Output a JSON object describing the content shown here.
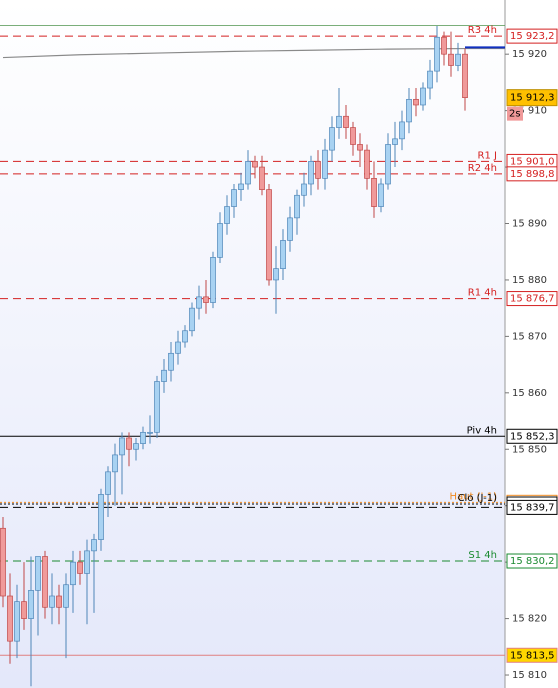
{
  "chart_data": {
    "type": "candlestick",
    "ylim": [
      15807.7,
      15929.6
    ],
    "yticks": [
      {
        "value": 15810,
        "label": "15 810"
      },
      {
        "value": 15820,
        "label": "15 820"
      },
      {
        "value": 15830,
        "label": "15 830"
      },
      {
        "value": 15840,
        "label": "15 840"
      },
      {
        "value": 15850,
        "label": "15 850"
      },
      {
        "value": 15860,
        "label": "15 860"
      },
      {
        "value": 15870,
        "label": "15 870"
      },
      {
        "value": 15880,
        "label": "15 880"
      },
      {
        "value": 15890,
        "label": "15 890"
      },
      {
        "value": 15900,
        "label": "15 900"
      },
      {
        "value": 15910,
        "label": "15 910"
      },
      {
        "value": 15920,
        "label": "15 920"
      }
    ],
    "up_color": "#a8d2f2",
    "up_edge": "#4f86b8",
    "down_color": "#f09a9a",
    "down_edge": "#c04848",
    "open": [
      15836,
      15824,
      15816,
      15823,
      15820,
      15825,
      15831,
      15822,
      15824,
      15822,
      15826,
      15830,
      15828,
      15832,
      15834,
      15842,
      15846,
      15849,
      15852,
      15850,
      15851,
      15853,
      15853,
      15862,
      15864,
      15867,
      15869,
      15871,
      15875,
      15877,
      15876,
      15884,
      15890,
      15893,
      15896,
      15897,
      15901,
      15900,
      15896,
      15880,
      15882,
      15887,
      15891,
      15895,
      15897,
      15901,
      15898,
      15903,
      15907,
      15909,
      15907,
      15904,
      15903,
      15898,
      15893,
      15897,
      15904,
      15905,
      15908,
      15912,
      15911,
      15914,
      15917,
      15923,
      15920,
      15918,
      15920
    ],
    "high": [
      15838,
      15828,
      15826,
      15830,
      15831,
      15831,
      15832,
      15828,
      15826,
      15828,
      15832,
      15832,
      15834,
      15835,
      15843,
      15847,
      15851,
      15853,
      15853,
      15852,
      15854,
      15856,
      15863,
      15866,
      15869,
      15871,
      15872,
      15876,
      15879,
      15880,
      15885,
      15892,
      15895,
      15897,
      15899,
      15903,
      15902,
      15902,
      15897,
      15886,
      15889,
      15893,
      15896,
      15899,
      15902,
      15903,
      15905,
      15909,
      15914,
      15911,
      15908,
      15906,
      15904,
      15901,
      15898,
      15906,
      15908,
      15910,
      15914,
      15914,
      15915,
      15919,
      15925,
      15924,
      15924,
      15922,
      15921
    ],
    "low": [
      15822,
      15812,
      15813,
      15818,
      15808,
      15817,
      15820,
      15819,
      15819,
      15813,
      15821,
      15826,
      15819,
      15821,
      15832,
      15838,
      15840,
      15842,
      15847,
      15848,
      15850,
      15851,
      15852,
      15860,
      15862,
      15865,
      15868,
      15870,
      15873,
      15874,
      15875,
      15883,
      15888,
      15891,
      15894,
      15896,
      15898,
      15895,
      15879,
      15874,
      15880,
      15885,
      15888,
      15893,
      15895,
      15896,
      15896,
      15901,
      15905,
      15905,
      15902,
      15900,
      15896,
      15891,
      15892,
      15896,
      15900,
      15903,
      15906,
      15909,
      15910,
      15912,
      15915,
      15918,
      15916,
      15917,
      15910
    ],
    "close": [
      15824,
      15816,
      15823,
      15820,
      15825,
      15831,
      15822,
      15824,
      15822,
      15826,
      15830,
      15828,
      15832,
      15834,
      15842,
      15846,
      15849,
      15852,
      15850,
      15851,
      15853,
      15853,
      15862,
      15864,
      15867,
      15869,
      15871,
      15875,
      15877,
      15876,
      15884,
      15890,
      15893,
      15896,
      15897,
      15901,
      15900,
      15896,
      15880,
      15882,
      15887,
      15891,
      15895,
      15897,
      15901,
      15898,
      15903,
      15907,
      15909,
      15907,
      15904,
      15903,
      15898,
      15893,
      15897,
      15904,
      15905,
      15908,
      15912,
      15911,
      15914,
      15917,
      15923,
      15920,
      15918,
      15920,
      15912.3
    ],
    "ma": {
      "color": "#8a8a8a",
      "x": [
        0,
        11,
        22,
        33,
        44,
        55,
        66,
        72
      ],
      "values": [
        15919.4,
        15919.9,
        15920.2,
        15920.5,
        15920.7,
        15920.9,
        15921.0,
        15921.0
      ]
    },
    "levels": [
      {
        "name": "R3 4h",
        "value": 15923.2,
        "value_label": "15 923,2",
        "color": "#d42020",
        "style": "dashed"
      },
      {
        "value": 15921.2,
        "color": "#1030c0",
        "style": "short"
      },
      {
        "name": "R1 J",
        "value": 15901.0,
        "value_label": "15 901,0",
        "color": "#d42020",
        "style": "dashed"
      },
      {
        "name": "R2 4h",
        "value": 15898.8,
        "value_label": "15 898,8",
        "color": "#d42020",
        "style": "dashed"
      },
      {
        "name": "R1 4h",
        "value": 15876.7,
        "value_label": "15 876,7",
        "color": "#d42020",
        "style": "dashed"
      },
      {
        "name": "Piv 4h",
        "value": 15852.3,
        "value_label": "15 852,3",
        "color": "#000000",
        "style": "solid"
      },
      {
        "name": "Haut (J-1)",
        "value": 15840.6,
        "value_label": "15 840,6",
        "color": "#f08a20",
        "style": "dotted"
      },
      {
        "name": "Clo (J-1)",
        "value": 15840.3,
        "value_label": "15 840,3",
        "color": "#000000",
        "style": "dotted"
      },
      {
        "value": 15839.7,
        "value_label": "15 839,7",
        "color": "#000000",
        "style": "dashed"
      },
      {
        "name": "S1 4h",
        "value": 15830.2,
        "value_label": "15 830,2",
        "color": "#1a8a30",
        "style": "dashed"
      },
      {
        "value": 15813.5,
        "value_label": "15 813,5",
        "color": "#e08080",
        "style": "thin",
        "badge": "#ffd700"
      }
    ],
    "current": {
      "value": 15912.3,
      "value_label": "15 912,3",
      "countdown": "2s",
      "color": "#ffc000"
    }
  }
}
